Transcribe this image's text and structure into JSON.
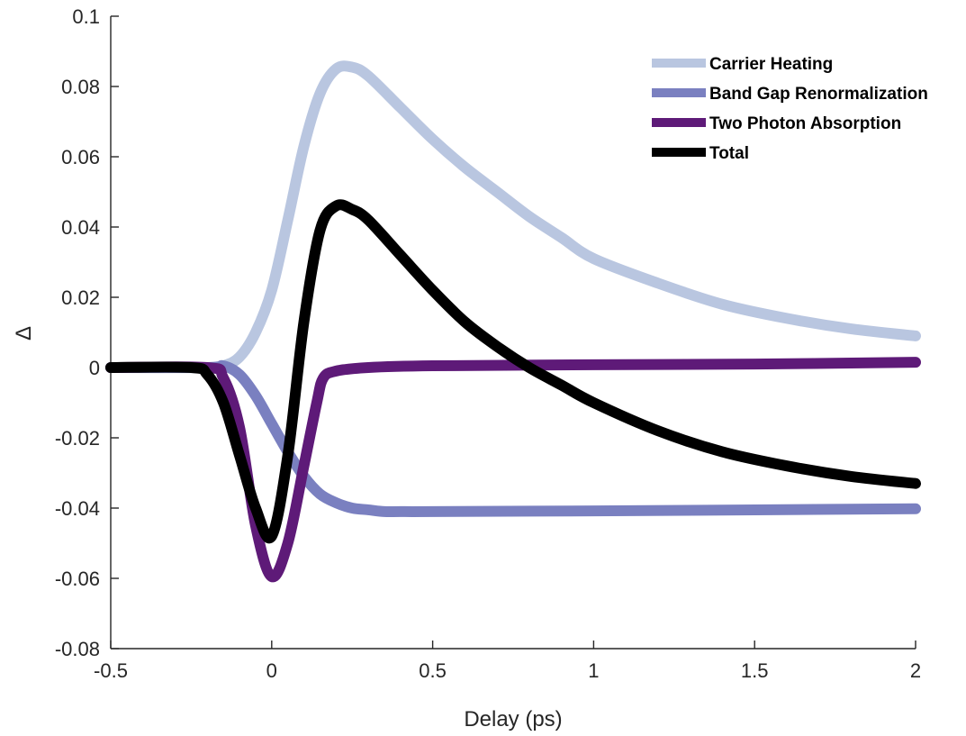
{
  "chart_data": {
    "type": "line",
    "title": "",
    "xlabel": "Delay (ps)",
    "ylabel": "Δ",
    "xlim": [
      -0.5,
      2
    ],
    "ylim": [
      -0.08,
      0.1
    ],
    "xticks": [
      -0.5,
      0,
      0.5,
      1,
      1.5,
      2
    ],
    "xtick_labels": [
      "-0.5",
      "0",
      "0.5",
      "1",
      "1.5",
      "2"
    ],
    "yticks": [
      -0.08,
      -0.06,
      -0.04,
      -0.02,
      0,
      0.02,
      0.04,
      0.06,
      0.08,
      0.1
    ],
    "ytick_labels": [
      "-0.08",
      "-0.06",
      "-0.04",
      "-0.02",
      "0",
      "0.02",
      "0.04",
      "0.06",
      "0.08",
      "0.1"
    ],
    "grid": false,
    "legend_position": "top-right",
    "series": [
      {
        "name": "Carrier Heating",
        "color": "#b9c6e0",
        "x": [
          -0.5,
          -0.3,
          -0.2,
          -0.15,
          -0.1,
          -0.05,
          0.0,
          0.05,
          0.1,
          0.15,
          0.2,
          0.25,
          0.3,
          0.4,
          0.5,
          0.6,
          0.7,
          0.8,
          0.9,
          1.0,
          1.2,
          1.4,
          1.6,
          1.8,
          2.0
        ],
        "y": [
          0,
          0,
          0,
          0.0005,
          0.003,
          0.01,
          0.022,
          0.042,
          0.063,
          0.078,
          0.085,
          0.0855,
          0.083,
          0.074,
          0.065,
          0.057,
          0.05,
          0.043,
          0.037,
          0.031,
          0.024,
          0.018,
          0.014,
          0.011,
          0.009
        ]
      },
      {
        "name": "Band Gap Renormalization",
        "color": "#7a80c0",
        "x": [
          -0.5,
          -0.2,
          -0.15,
          -0.1,
          -0.05,
          0.0,
          0.05,
          0.1,
          0.15,
          0.2,
          0.25,
          0.3,
          0.35,
          0.4,
          0.5,
          1.0,
          1.5,
          2.0
        ],
        "y": [
          0,
          0,
          0.0005,
          -0.002,
          -0.008,
          -0.016,
          -0.024,
          -0.031,
          -0.036,
          -0.0385,
          -0.04,
          -0.0405,
          -0.041,
          -0.041,
          -0.041,
          -0.0408,
          -0.0405,
          -0.0402
        ]
      },
      {
        "name": "Two Photon Absorption",
        "color": "#5e1a78",
        "x": [
          -0.5,
          -0.2,
          -0.15,
          -0.1,
          -0.05,
          0.0,
          0.05,
          0.1,
          0.14,
          0.16,
          0.2,
          0.3,
          0.5,
          1.0,
          1.5,
          2.0
        ],
        "y": [
          0,
          0,
          -0.003,
          -0.017,
          -0.045,
          -0.0595,
          -0.05,
          -0.028,
          -0.01,
          -0.003,
          -0.001,
          0,
          0.0005,
          0.0008,
          0.001,
          0.0015
        ]
      },
      {
        "name": "Total",
        "color": "#000000",
        "x": [
          -0.5,
          -0.25,
          -0.2,
          -0.15,
          -0.1,
          -0.05,
          0.0,
          0.05,
          0.1,
          0.15,
          0.2,
          0.25,
          0.3,
          0.4,
          0.5,
          0.6,
          0.7,
          0.8,
          0.9,
          1.0,
          1.2,
          1.4,
          1.6,
          1.8,
          2.0
        ],
        "y": [
          0,
          0,
          -0.002,
          -0.01,
          -0.025,
          -0.04,
          -0.048,
          -0.025,
          0.013,
          0.039,
          0.046,
          0.045,
          0.042,
          0.032,
          0.022,
          0.013,
          0.006,
          0.0,
          -0.005,
          -0.01,
          -0.018,
          -0.024,
          -0.028,
          -0.031,
          -0.033
        ]
      }
    ]
  }
}
